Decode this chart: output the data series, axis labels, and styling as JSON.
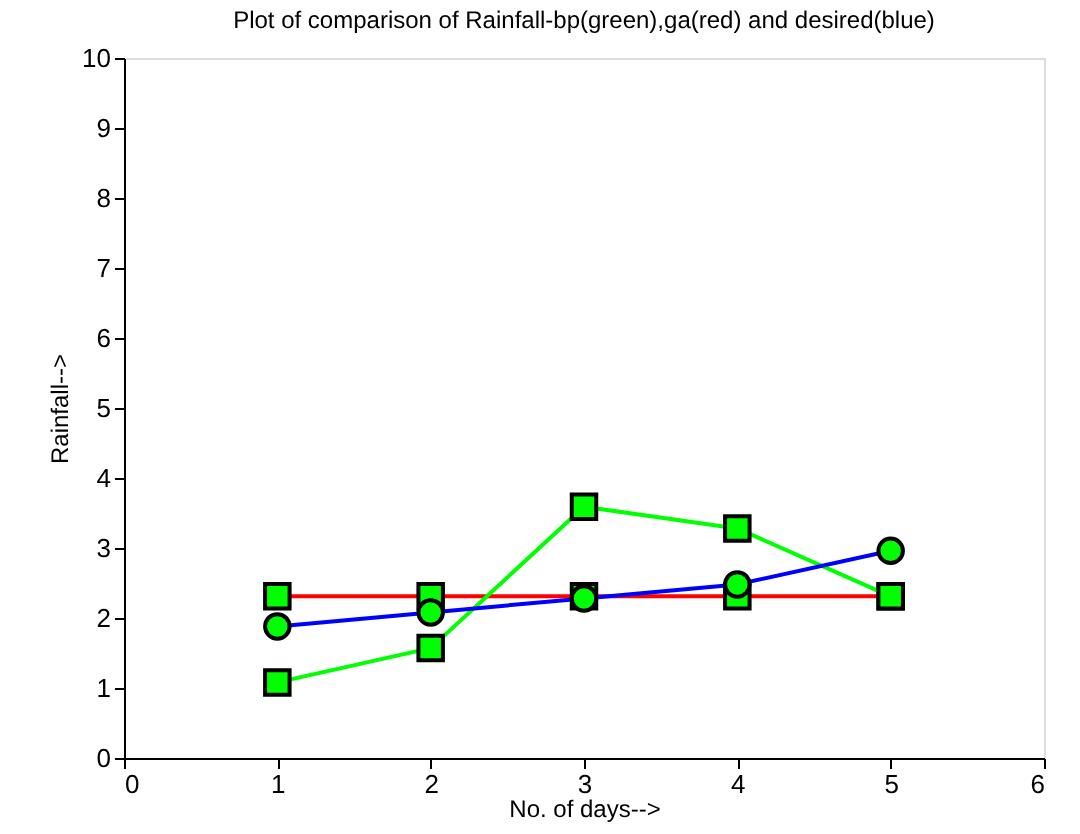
{
  "chart_data": {
    "type": "line",
    "title": "Plot of comparison of Rainfall-bp(green),ga(red) and desired(blue)",
    "xlabel": "No. of days-->",
    "ylabel": "Rainfall-->",
    "x": [
      1,
      2,
      3,
      4,
      5
    ],
    "series": [
      {
        "color": "#ff0000",
        "marker": "square",
        "values": [
          2.31,
          2.31,
          2.31,
          2.31,
          2.31
        ]
      },
      {
        "color": "#00ff00",
        "marker": "square",
        "values": [
          1.08,
          1.57,
          3.59,
          3.28,
          2.31
        ]
      },
      {
        "color": "#0000ff",
        "marker": "circle",
        "values": [
          1.88,
          2.08,
          2.28,
          2.48,
          2.96
        ]
      }
    ],
    "xlim": [
      0,
      6
    ],
    "xticks": [
      0,
      1,
      2,
      3,
      4,
      5,
      6
    ],
    "ylim": [
      0,
      10
    ],
    "yticks": [
      0,
      1,
      2,
      3,
      4,
      5,
      6,
      7,
      8,
      9,
      10
    ],
    "grid": false,
    "line_style": "solid"
  }
}
